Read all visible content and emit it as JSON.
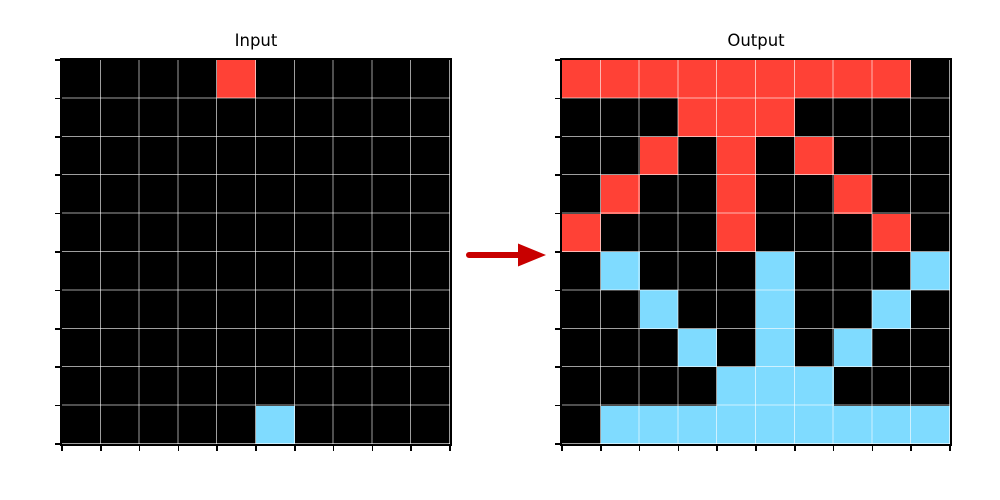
{
  "figure": {
    "background": "#FFFFFF"
  },
  "chart_data": [
    {
      "type": "heatmap",
      "title": "Input",
      "rows": 10,
      "cols": 10,
      "matrix": [
        [
          0,
          0,
          0,
          0,
          2,
          0,
          0,
          0,
          0,
          0
        ],
        [
          0,
          0,
          0,
          0,
          0,
          0,
          0,
          0,
          0,
          0
        ],
        [
          0,
          0,
          0,
          0,
          0,
          0,
          0,
          0,
          0,
          0
        ],
        [
          0,
          0,
          0,
          0,
          0,
          0,
          0,
          0,
          0,
          0
        ],
        [
          0,
          0,
          0,
          0,
          0,
          0,
          0,
          0,
          0,
          0
        ],
        [
          0,
          0,
          0,
          0,
          0,
          0,
          0,
          0,
          0,
          0
        ],
        [
          0,
          0,
          0,
          0,
          0,
          0,
          0,
          0,
          0,
          0
        ],
        [
          0,
          0,
          0,
          0,
          0,
          0,
          0,
          0,
          0,
          0
        ],
        [
          0,
          0,
          0,
          0,
          0,
          0,
          0,
          0,
          0,
          0
        ],
        [
          0,
          0,
          0,
          0,
          0,
          8,
          0,
          0,
          0,
          0
        ]
      ]
    },
    {
      "type": "heatmap",
      "title": "Output",
      "rows": 10,
      "cols": 10,
      "matrix": [
        [
          2,
          2,
          2,
          2,
          2,
          2,
          2,
          2,
          2,
          0
        ],
        [
          0,
          0,
          0,
          2,
          2,
          2,
          0,
          0,
          0,
          0
        ],
        [
          0,
          0,
          2,
          0,
          2,
          0,
          2,
          0,
          0,
          0
        ],
        [
          0,
          2,
          0,
          0,
          2,
          0,
          0,
          2,
          0,
          0
        ],
        [
          2,
          0,
          0,
          0,
          2,
          0,
          0,
          0,
          2,
          0
        ],
        [
          0,
          8,
          0,
          0,
          0,
          8,
          0,
          0,
          0,
          8
        ],
        [
          0,
          0,
          8,
          0,
          0,
          8,
          0,
          0,
          8,
          0
        ],
        [
          0,
          0,
          0,
          8,
          0,
          8,
          0,
          8,
          0,
          0
        ],
        [
          0,
          0,
          0,
          0,
          8,
          8,
          8,
          0,
          0,
          0
        ],
        [
          0,
          8,
          8,
          8,
          8,
          8,
          8,
          8,
          8,
          8
        ]
      ]
    }
  ],
  "palette": {
    "0": "#000000",
    "2": "#FF4136",
    "8": "#7FDBFF"
  },
  "styles": {
    "grid_line_color": "rgba(255,255,255,0.62)",
    "spine_color": "#000000",
    "tick_color": "#000000"
  },
  "arrow": {
    "color": "#C80000"
  }
}
